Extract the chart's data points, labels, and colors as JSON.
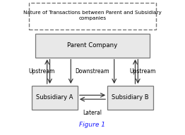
{
  "title_text": "Nature of Transactions between Parent and Subsidiary\ncompanies",
  "parent_label": "Parent Company",
  "sub_a_label": "Subsidiary A",
  "sub_b_label": "Subsidiary B",
  "upstream_left": "Upstream",
  "upstream_right": "Upstream",
  "downstream": "Downstream",
  "lateral": "Lateral",
  "figure_label": "Figure 1",
  "bg_color": "#ffffff",
  "box_facecolor": "#e8e8e8",
  "box_edgecolor": "#777777",
  "dashed_edgecolor": "#777777",
  "arrow_color": "#333333",
  "text_color": "#000000",
  "figure_label_color": "#1a1aff",
  "figsize": [
    2.62,
    1.92
  ],
  "dpi": 100,
  "xlim": [
    0,
    1.0
  ],
  "ylim": [
    0,
    1.0
  ]
}
